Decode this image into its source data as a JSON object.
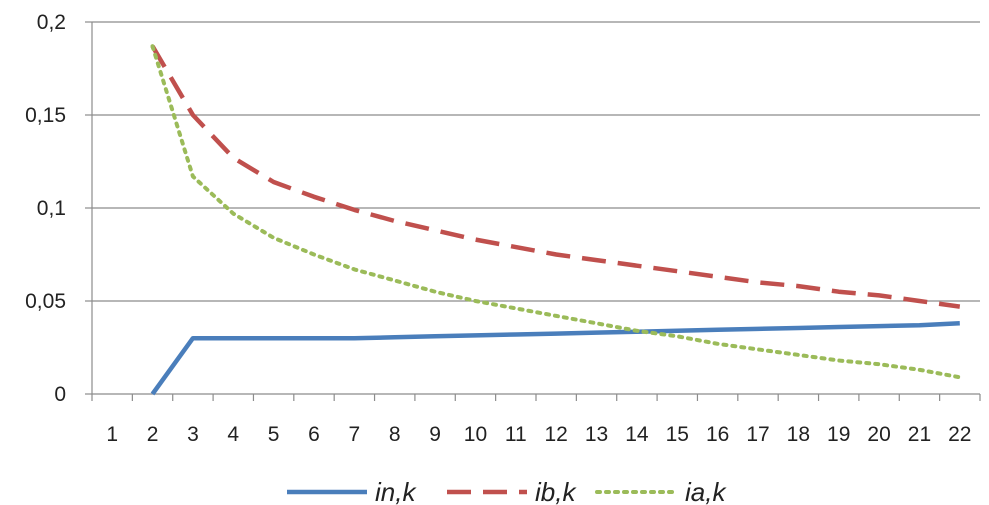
{
  "chart_data": {
    "type": "line",
    "categories": [
      "1",
      "2",
      "3",
      "4",
      "5",
      "6",
      "7",
      "8",
      "9",
      "10",
      "11",
      "12",
      "13",
      "14",
      "15",
      "16",
      "17",
      "18",
      "19",
      "20",
      "21",
      "22"
    ],
    "ylim": [
      0,
      0.2
    ],
    "yticks": [
      0,
      0.05,
      0.1,
      0.15,
      0.2
    ],
    "ytick_labels": [
      "0",
      "0,05",
      "0,1",
      "0,15",
      "0,2"
    ],
    "grid": "horizontal",
    "legend_position": "bottom",
    "series": [
      {
        "name": "in,k",
        "color": "#4a7ebb",
        "style": "solid",
        "values": [
          null,
          0,
          0.03,
          0.03,
          0.03,
          0.03,
          0.03,
          0.0305,
          0.031,
          0.0315,
          0.032,
          0.0325,
          0.033,
          0.0335,
          0.034,
          0.0345,
          0.035,
          0.0355,
          0.036,
          0.0365,
          0.037,
          0.038
        ]
      },
      {
        "name": "ib,k",
        "color": "#c0504d",
        "style": "dashed",
        "values": [
          null,
          0.187,
          0.15,
          0.127,
          0.114,
          0.106,
          0.099,
          0.093,
          0.088,
          0.083,
          0.079,
          0.075,
          0.072,
          0.069,
          0.066,
          0.063,
          0.06,
          0.058,
          0.055,
          0.053,
          0.05,
          0.047
        ]
      },
      {
        "name": "ia,k",
        "color": "#9bbb59",
        "style": "dotted",
        "values": [
          null,
          0.187,
          0.117,
          0.097,
          0.084,
          0.075,
          0.067,
          0.061,
          0.055,
          0.05,
          0.046,
          0.042,
          0.038,
          0.034,
          0.031,
          0.027,
          0.024,
          0.021,
          0.018,
          0.016,
          0.013,
          0.009
        ]
      }
    ]
  }
}
